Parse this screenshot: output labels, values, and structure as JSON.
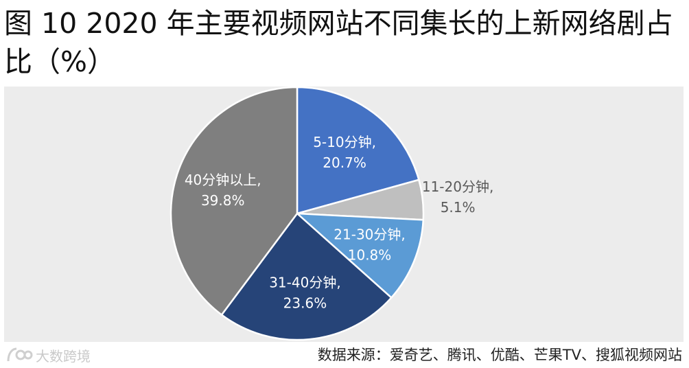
{
  "title": "图 10 2020 年主要视频网站不同集长的上新网络剧占比（%）",
  "source": "数据来源：爱奇艺、腾讯、优酷、芒果TV、搜狐视频网站",
  "watermark": "大数跨境",
  "chart_data": {
    "type": "pie",
    "start_angle_deg": 0,
    "direction": "clockwise",
    "slices": [
      {
        "label": "5-10分钟,",
        "value": 20.7,
        "value_label": "20.7%",
        "color": "#4472c4",
        "text_color": "#ffffff"
      },
      {
        "label": "11-20分钟,",
        "value": 5.1,
        "value_label": "5.1%",
        "color": "#bfbfbf",
        "text_color": "#595959"
      },
      {
        "label": "21-30分钟,",
        "value": 10.8,
        "value_label": "10.8%",
        "color": "#5b9bd5",
        "text_color": "#ffffff"
      },
      {
        "label": "31-40分钟,",
        "value": 23.6,
        "value_label": "23.6%",
        "color": "#264478",
        "text_color": "#ffffff"
      },
      {
        "label": "40分钟以上,",
        "value": 39.8,
        "value_label": "39.8%",
        "color": "#7f7f7f",
        "text_color": "#ffffff"
      }
    ]
  }
}
